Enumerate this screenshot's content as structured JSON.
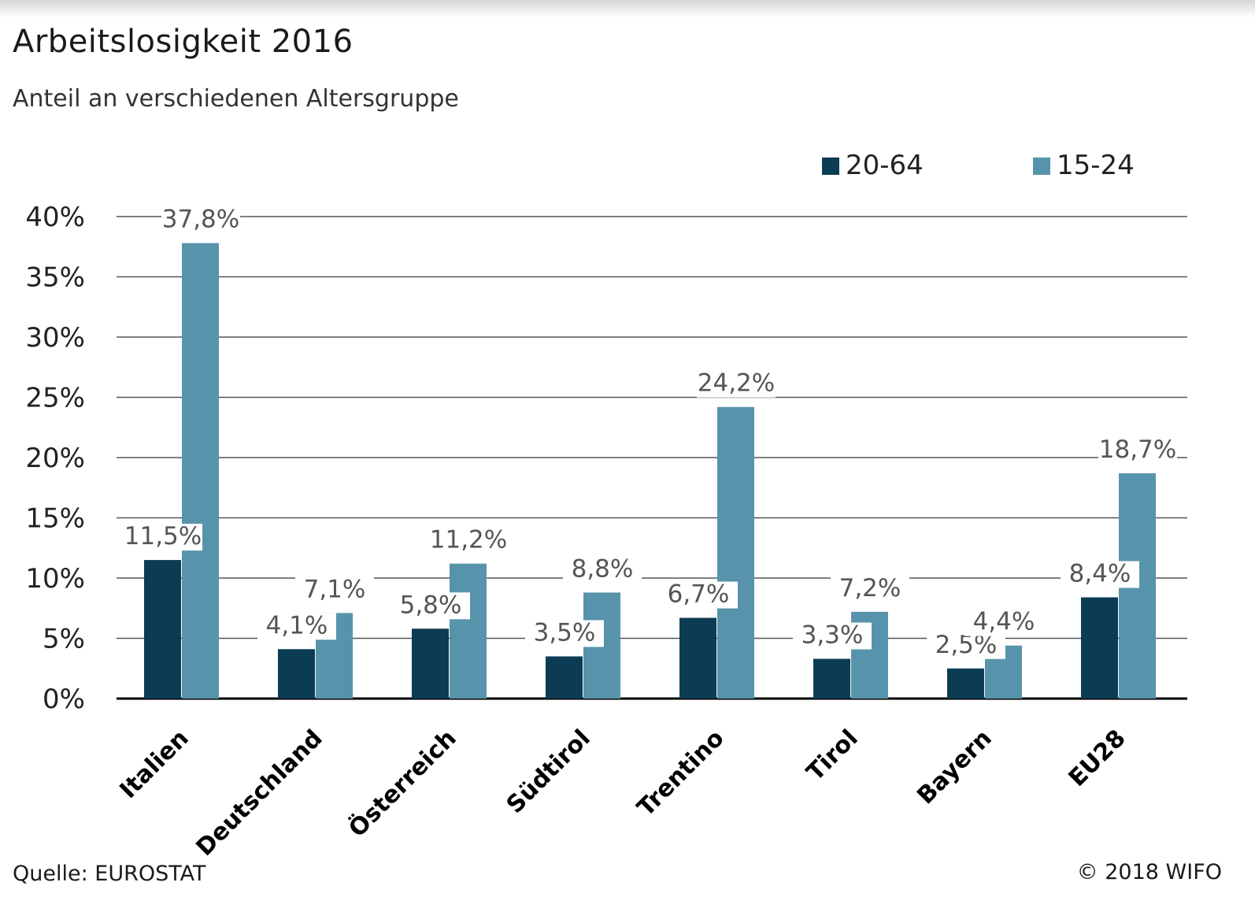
{
  "title": "Arbeitslosigkeit 2016",
  "subtitle": "Anteil an verschiedenen Altersgruppe",
  "source": "Quelle: EUROSTAT",
  "copyright": "© 2018 WIFO",
  "colors": {
    "series_20_64": "#0b3c54",
    "series_15_24": "#5893ac",
    "gridline": "#555555",
    "axis": "#000000"
  },
  "chart_data": {
    "type": "bar",
    "title": "Arbeitslosigkeit 2016",
    "subtitle": "Anteil an verschiedenen Altersgruppe",
    "xlabel": "",
    "ylabel": "",
    "ylim": [
      0,
      40
    ],
    "yticks": [
      0,
      5,
      10,
      15,
      20,
      25,
      30,
      35,
      40
    ],
    "ytick_labels": [
      "0%",
      "5%",
      "10%",
      "15%",
      "20%",
      "25%",
      "30%",
      "35%",
      "40%"
    ],
    "grid": true,
    "legend_position": "top-right",
    "categories": [
      "Italien",
      "Deutschland",
      "Österreich",
      "Südtirol",
      "Trentino",
      "Tirol",
      "Bayern",
      "EU28"
    ],
    "series": [
      {
        "name": "20-64",
        "values": [
          11.5,
          4.1,
          5.8,
          3.5,
          6.7,
          3.3,
          2.5,
          8.4
        ],
        "labels": [
          "11,5%",
          "4,1%",
          "5,8%",
          "3,5%",
          "6,7%",
          "3,3%",
          "2,5%",
          "8,4%"
        ]
      },
      {
        "name": "15-24",
        "values": [
          37.8,
          7.1,
          11.2,
          8.8,
          24.2,
          7.2,
          4.4,
          18.7
        ],
        "labels": [
          "37,8%",
          "7,1%",
          "11,2%",
          "8,8%",
          "24,2%",
          "7,2%",
          "4,4%",
          "18,7%"
        ]
      }
    ]
  }
}
